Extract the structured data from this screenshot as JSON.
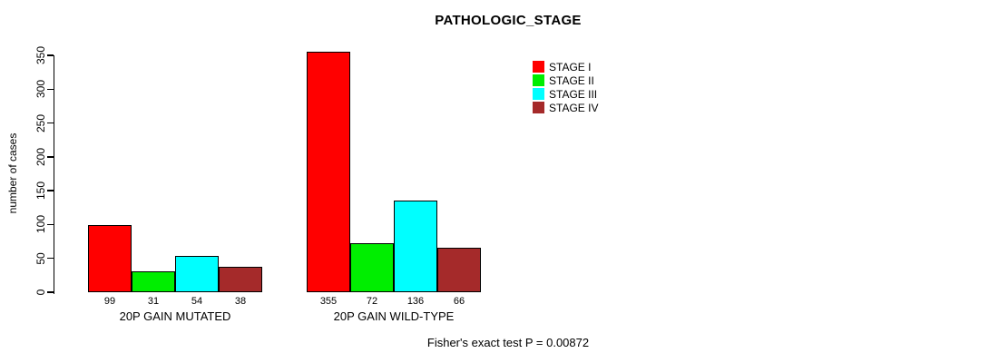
{
  "chart_data": {
    "type": "bar",
    "title": "PATHOLOGIC_STAGE",
    "xlabel": "",
    "ylabel": "number of cases",
    "ylim": [
      0,
      355
    ],
    "yticks": [
      0,
      50,
      100,
      150,
      200,
      250,
      300,
      350
    ],
    "grid": false,
    "legend_position": "top-right",
    "categories": [
      "20P GAIN MUTATED",
      "20P GAIN WILD-TYPE"
    ],
    "series": [
      {
        "name": "STAGE I",
        "color": "#FF0000",
        "values": [
          99,
          355
        ]
      },
      {
        "name": "STAGE II",
        "color": "#00EE00",
        "values": [
          31,
          72
        ]
      },
      {
        "name": "STAGE III",
        "color": "#00FFFF",
        "values": [
          54,
          136
        ]
      },
      {
        "name": "STAGE IV",
        "color": "#A52A2A",
        "values": [
          38,
          66
        ]
      }
    ],
    "bar_value_labels": true,
    "annotation": "Fisher's exact test P = 0.00872",
    "axis_color": "#000000",
    "background_color": "#FFFFFF"
  }
}
